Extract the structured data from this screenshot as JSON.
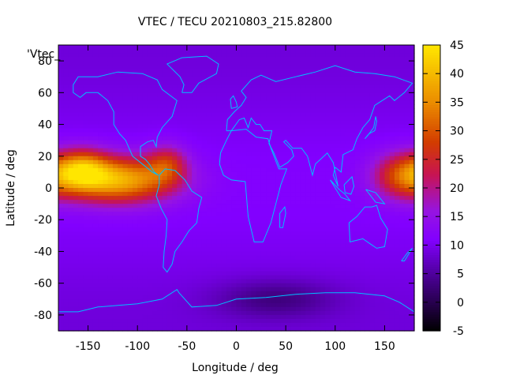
{
  "chart_data": {
    "type": "heatmap",
    "title": "VTEC / TECU 20210803_215.82800",
    "xlabel": "Longitude / deg",
    "ylabel": "Latitude / deg",
    "key_label": "'Vtec_",
    "xlim": [
      -180,
      180
    ],
    "ylim": [
      -90,
      90
    ],
    "x_ticks": [
      -150,
      -100,
      -50,
      0,
      50,
      100,
      150
    ],
    "y_ticks": [
      -80,
      -60,
      -40,
      -20,
      0,
      20,
      40,
      60,
      80
    ],
    "colorbar": {
      "range": [
        -5,
        45
      ],
      "ticks": [
        -5,
        0,
        5,
        10,
        15,
        20,
        25,
        30,
        35,
        40,
        45
      ],
      "palette": "gnuplot black-purple-red-orange-yellow"
    },
    "grid": false,
    "overlay": "world coastlines (cyan)",
    "coastline_color": "#00bfff",
    "background_level_tecu": 10,
    "enhancements": [
      {
        "lon": -120,
        "lat": 5,
        "peak_tecu": 38,
        "lon_extent": 55,
        "lat_extent": 14
      },
      {
        "lon": -155,
        "lat": 12,
        "peak_tecu": 28,
        "lon_extent": 25,
        "lat_extent": 12
      },
      {
        "lon": -70,
        "lat": 15,
        "peak_tecu": 22,
        "lon_extent": 20,
        "lat_extent": 12
      },
      {
        "lon": 170,
        "lat": 8,
        "peak_tecu": 27,
        "lon_extent": 30,
        "lat_extent": 14
      },
      {
        "lon": 40,
        "lat": -70,
        "peak_tecu": 4,
        "lon_extent": 60,
        "lat_extent": 12
      }
    ]
  }
}
